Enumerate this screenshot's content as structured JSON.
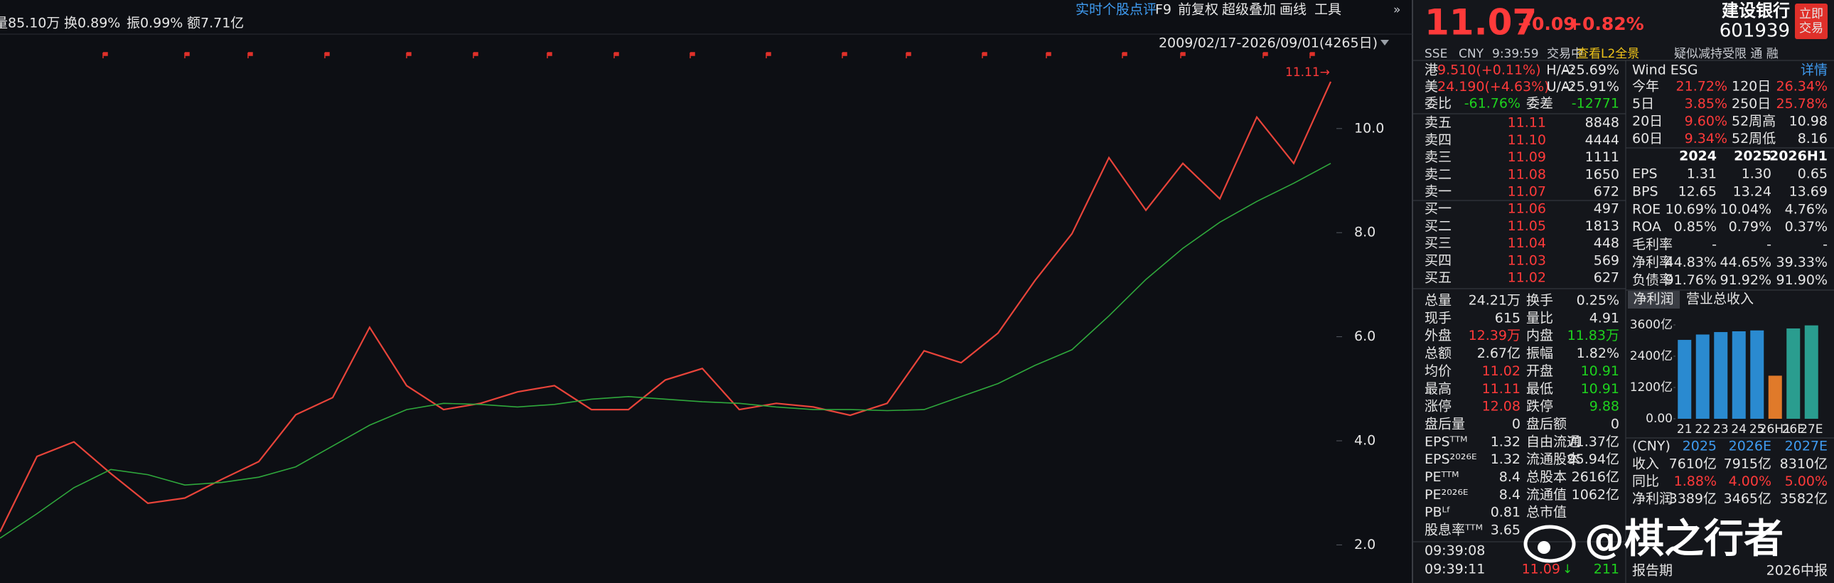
{
  "toolbar": {
    "stats": [
      "量85.10万",
      "换0.89%",
      "振0.99%",
      "额7.71亿"
    ],
    "menu": [
      "实时个股点评",
      "F9",
      "前复权",
      "超级叠加",
      "画线",
      "工具"
    ],
    "range": "2009/02/17-2026/09/01(4265日)"
  },
  "chart_data": [
    {
      "type": "line",
      "annotation": "11.11→",
      "ylim": [
        1.5,
        11.5
      ],
      "yticks": [
        {
          "value": 2,
          "label": "2.0"
        },
        {
          "value": 4,
          "label": "4.0"
        },
        {
          "value": 6,
          "label": "6.0"
        },
        {
          "value": 8,
          "label": "8.0"
        },
        {
          "value": 10,
          "label": "10.0"
        }
      ],
      "series": [
        {
          "color": "#e8443a",
          "values": [
            2.25,
            3.7,
            3.98,
            3.37,
            2.8,
            2.9,
            3.26,
            3.6,
            4.5,
            4.83,
            6.18,
            5.06,
            4.6,
            4.72,
            4.94,
            5.06,
            4.6,
            4.6,
            5.17,
            5.39,
            4.6,
            4.72,
            4.65,
            4.49,
            4.72,
            5.73,
            5.5,
            6.07,
            7.08,
            7.98,
            9.44,
            8.43,
            9.33,
            8.65,
            10.22,
            9.33,
            10.9
          ]
        },
        {
          "color": "#2fa83c",
          "values": [
            2.13,
            2.6,
            3.1,
            3.45,
            3.35,
            3.15,
            3.2,
            3.3,
            3.5,
            3.9,
            4.3,
            4.6,
            4.72,
            4.7,
            4.65,
            4.7,
            4.8,
            4.85,
            4.8,
            4.75,
            4.72,
            4.65,
            4.6,
            4.6,
            4.58,
            4.6,
            4.85,
            5.1,
            5.45,
            5.75,
            6.4,
            7.1,
            7.7,
            8.2,
            8.6,
            8.95,
            9.33
          ]
        }
      ]
    },
    {
      "type": "bar",
      "tabs": [
        "净利润",
        "营业总收入"
      ],
      "categories": [
        "21",
        "22",
        "23",
        "24",
        "25",
        "26H1",
        "26E",
        "27E"
      ],
      "values": [
        3026,
        3232,
        3326,
        3355,
        3389,
        1652,
        3465,
        3582
      ],
      "colors": [
        "#2a8ad0",
        "#2a8ad0",
        "#2a8ad0",
        "#2a8ad0",
        "#2a8ad0",
        "#e07a2a",
        "#2a9d8f",
        "#2a9d8f"
      ],
      "ylim": [
        0,
        3900
      ],
      "yticks": [
        {
          "value": 0,
          "label": "0.00"
        },
        {
          "value": 1200,
          "label": "1200亿"
        },
        {
          "value": 2400,
          "label": "2400亿"
        },
        {
          "value": 3600,
          "label": "3600亿"
        }
      ]
    }
  ],
  "quote": {
    "price": "11.07",
    "change": "+0.09",
    "change_pct": "+0.82%",
    "name": "建设银行",
    "code": "601939",
    "trade_button": "立即交易",
    "exchange": "SSE",
    "currency": "CNY",
    "time": "9:39:59",
    "status": "交易中",
    "l2_link": "查看L2全景",
    "tags": "疑似减持受限 通 融"
  },
  "cross_listing": [
    [
      "港",
      "9.510(+0.11%)",
      "H/A:",
      "-25.69%"
    ],
    [
      "美",
      "24.190(+4.63%)",
      "U/A:",
      "-25.91%"
    ]
  ],
  "order_ratio": [
    "委比",
    "-61.76%",
    "委差",
    "-12771"
  ],
  "order_book": [
    [
      "卖五",
      "11.11",
      "8848"
    ],
    [
      "卖四",
      "11.10",
      "4444"
    ],
    [
      "卖三",
      "11.09",
      "1111"
    ],
    [
      "卖二",
      "11.08",
      "1650"
    ],
    [
      "卖一",
      "11.07",
      "672"
    ],
    [
      "买一",
      "11.06",
      "497"
    ],
    [
      "买二",
      "11.05",
      "1813"
    ],
    [
      "买三",
      "11.04",
      "448"
    ],
    [
      "买四",
      "11.03",
      "569"
    ],
    [
      "买五",
      "11.02",
      "627"
    ]
  ],
  "stats": [
    [
      "总量",
      "24.21万",
      "换手",
      "0.25%"
    ],
    [
      "现手",
      "615",
      "量比",
      "4.91"
    ],
    [
      "外盘",
      "12.39万",
      "内盘",
      "11.83万"
    ],
    [
      "总额",
      "2.67亿",
      "振幅",
      "1.82%"
    ],
    [
      "均价",
      "11.02",
      "开盘",
      "10.91"
    ],
    [
      "最高",
      "11.11",
      "最低",
      "10.91"
    ],
    [
      "涨停",
      "12.08",
      "跌停",
      "9.88"
    ],
    [
      "盘后量",
      "0",
      "盘后额",
      "0"
    ],
    [
      "EPSᵀᵀᴹ",
      "1.32",
      "自由流通",
      "71.37亿"
    ],
    [
      "EPS²⁰²⁶ᴱ",
      "1.32",
      "流通股本",
      "95.94亿"
    ],
    [
      "PEᵀᵀᴹ",
      "8.4",
      "总股本",
      "2616亿"
    ],
    [
      "PE²⁰²⁶ᴱ",
      "8.4",
      "流通值",
      "1062亿"
    ],
    [
      "PBᴸᶠ",
      "0.81",
      "总市值"
    ],
    [
      "股息率ᵀᵀᴹ",
      "3.65"
    ]
  ],
  "trades": [
    [
      "09:39:08"
    ],
    [
      "09:39:11",
      "11.09",
      "211"
    ]
  ],
  "watermark": "@棋之行者",
  "esg": [
    "Wind ESG",
    "详情"
  ],
  "returns": [
    [
      "今年",
      "21.72%",
      "120日",
      "26.34%"
    ],
    [
      "5日",
      "3.85%",
      "250日",
      "25.78%"
    ],
    [
      "20日",
      "9.60%",
      "52周高",
      "10.98"
    ],
    [
      "60日",
      "9.34%",
      "52周低",
      "8.16"
    ]
  ],
  "fundamentals": {
    "columns": [
      "2024",
      "2025",
      "2026H1"
    ],
    "rows": [
      [
        "EPS",
        "1.31",
        "1.30",
        "0.65"
      ],
      [
        "BPS",
        "12.65",
        "13.24",
        "13.69"
      ],
      [
        "ROE",
        "10.69%",
        "10.04%",
        "4.76%"
      ],
      [
        "ROA",
        "0.85%",
        "0.79%",
        "0.37%"
      ],
      [
        "毛利率",
        "-",
        "-",
        "-"
      ],
      [
        "净利率",
        "44.83%",
        "44.65%",
        "39.33%"
      ],
      [
        "负债率",
        "91.76%",
        "91.92%",
        "91.90%"
      ]
    ]
  },
  "forecast": {
    "unit": "(CNY)",
    "columns": [
      "2025",
      "2026E",
      "2027E"
    ],
    "rows": [
      [
        "收入",
        "7610亿",
        "7915亿",
        "8310亿"
      ],
      [
        "同比",
        "1.88%",
        "4.00%",
        "5.00%"
      ],
      [
        "净利润",
        "3389亿",
        "3465亿",
        "3582亿"
      ]
    ]
  },
  "report": [
    "报告期",
    "2026中报"
  ]
}
